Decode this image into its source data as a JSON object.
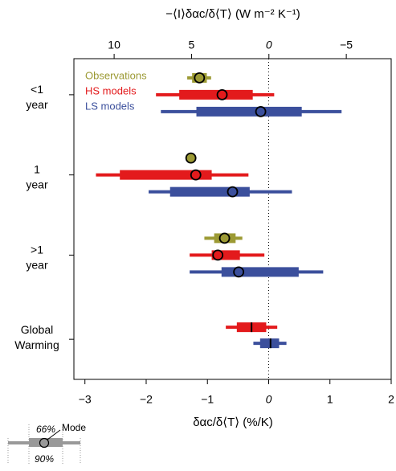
{
  "chart_data": {
    "type": "interval",
    "xlabel": "δαc/δ⟨T⟩ (%/K)",
    "x2label": "−⟨I⟩δαc/δ⟨T⟩ (W m⁻² K⁻¹)",
    "xlim": [
      -3.18,
      2
    ],
    "xticks": [
      {
        "value": -3,
        "label": "−3"
      },
      {
        "value": -2,
        "label": "−2"
      },
      {
        "value": -1,
        "label": "−1"
      },
      0,
      1,
      2
    ],
    "x2lim": [
      12.6,
      -7.9
    ],
    "x2ticks": [
      10,
      5,
      0,
      {
        "value": -5,
        "label": "−5"
      }
    ],
    "zero_line": true,
    "categories": [
      "<1 year",
      "1 year",
      ">1 year",
      "Global Warming"
    ],
    "mode_style": [
      "circle",
      "circle",
      "circle",
      "line"
    ],
    "series": [
      {
        "name": "Observations",
        "color": "#9c9a34",
        "low90": [
          -1.33,
          null,
          -1.05,
          null
        ],
        "high90": [
          -0.94,
          null,
          -0.43,
          null
        ],
        "low66": [
          -1.25,
          -1.31,
          -0.89,
          null
        ],
        "high66": [
          -1.01,
          -1.23,
          -0.54,
          null
        ],
        "mode": [
          -1.13,
          -1.27,
          -0.72,
          null
        ]
      },
      {
        "name": "HS models",
        "color": "#e31a1c",
        "low90": [
          -1.84,
          -2.82,
          -1.29,
          -0.7
        ],
        "high90": [
          0.09,
          -0.33,
          -0.07,
          0.14
        ],
        "low66": [
          -1.46,
          -2.43,
          -0.93,
          -0.52
        ],
        "high66": [
          -0.26,
          -0.93,
          -0.47,
          -0.04
        ],
        "mode": [
          -0.76,
          -1.19,
          -0.83,
          -0.28
        ]
      },
      {
        "name": "LS models",
        "color": "#3b4f9c",
        "low90": [
          -1.76,
          -1.96,
          -1.29,
          -0.25
        ],
        "high90": [
          1.19,
          0.38,
          0.89,
          0.29
        ],
        "low66": [
          -1.18,
          -1.61,
          -0.77,
          -0.14
        ],
        "high66": [
          0.54,
          -0.31,
          0.49,
          0.17
        ],
        "mode": [
          -0.13,
          -0.59,
          -0.49,
          0.03
        ]
      }
    ],
    "key": {
      "inner": "66%",
      "mode": "Mode",
      "outer": "90%"
    }
  }
}
